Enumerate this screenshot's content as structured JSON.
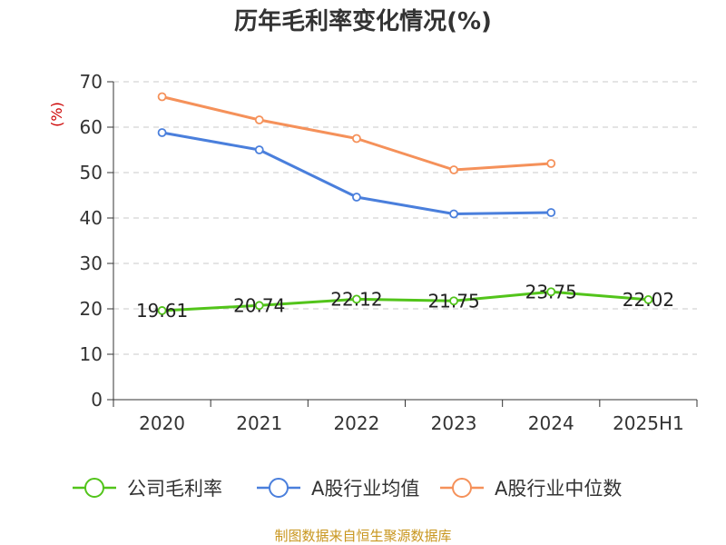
{
  "chart_data": {
    "type": "line",
    "title": "历年毛利率变化情况(%)",
    "ylabel": "(%)",
    "xlabel": "",
    "categories": [
      "2020",
      "2021",
      "2022",
      "2023",
      "2024",
      "2025H1"
    ],
    "ylim": [
      0,
      70
    ],
    "yticks": [
      0,
      10,
      20,
      30,
      40,
      50,
      60,
      70
    ],
    "grid": true,
    "legend_position": "bottom",
    "series": [
      {
        "name": "公司毛利率",
        "color": "#52c41a",
        "values": [
          19.61,
          20.74,
          22.12,
          21.75,
          23.75,
          22.02
        ],
        "labels": [
          "19.61",
          "20.74",
          "22.12",
          "21.75",
          "23.75",
          "22.02"
        ]
      },
      {
        "name": "A股行业均值",
        "color": "#4a7fdc",
        "values": [
          58.8,
          55.0,
          44.6,
          40.9,
          41.2,
          null
        ]
      },
      {
        "name": "A股行业中位数",
        "color": "#f5915a",
        "values": [
          66.7,
          61.6,
          57.5,
          50.6,
          52.0,
          null
        ]
      }
    ],
    "source": "制图数据来自恒生聚源数据库",
    "source_color": "#c8961e",
    "ylabel_color": "#cc0000"
  }
}
